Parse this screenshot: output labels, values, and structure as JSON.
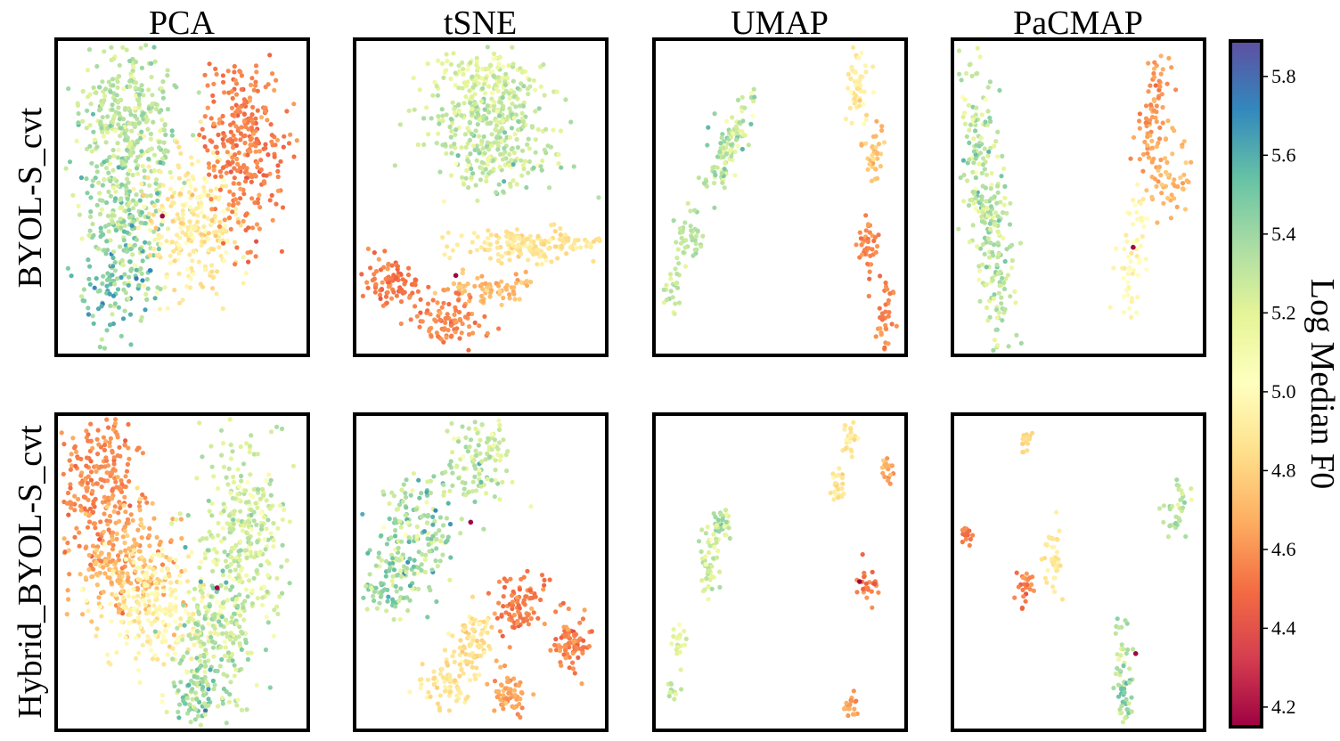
{
  "chart_data": {
    "type": "scatter",
    "grid": false,
    "columns": [
      "PCA",
      "tSNE",
      "UMAP",
      "PaCMAP"
    ],
    "rows": [
      "BYOL-S_cvt",
      "Hybrid_BYOL-S_cvt"
    ],
    "colorbar": {
      "label": "Log Median F0",
      "colormap": "Spectral",
      "range": [
        4.15,
        5.89
      ],
      "ticks": [
        "4.2",
        "4.4",
        "4.6",
        "4.8",
        "5.0",
        "5.2",
        "5.4",
        "5.6",
        "5.8"
      ],
      "tick_values": [
        4.2,
        4.4,
        4.6,
        4.8,
        5.0,
        5.2,
        5.4,
        5.6,
        5.8
      ]
    },
    "panels": [
      {
        "row": 0,
        "method": "PCA",
        "clusters": [
          {
            "x": 0.29,
            "y": 0.26,
            "sx": 0.1,
            "sy": 0.13,
            "v": 5.3,
            "vs": 0.08,
            "n": 320
          },
          {
            "x": 0.27,
            "y": 0.57,
            "sx": 0.09,
            "sy": 0.16,
            "v": 5.36,
            "vs": 0.12,
            "n": 260
          },
          {
            "x": 0.55,
            "y": 0.59,
            "sx": 0.1,
            "sy": 0.12,
            "v": 4.92,
            "vs": 0.07,
            "n": 260
          },
          {
            "x": 0.75,
            "y": 0.33,
            "sx": 0.08,
            "sy": 0.15,
            "v": 4.55,
            "vs": 0.05,
            "n": 300
          },
          {
            "x": 0.25,
            "y": 0.78,
            "sx": 0.07,
            "sy": 0.08,
            "v": 5.52,
            "vs": 0.14,
            "n": 70
          }
        ],
        "outliers": [
          {
            "x": 0.42,
            "y": 0.56,
            "v": 4.16
          }
        ]
      },
      {
        "row": 0,
        "method": "tSNE",
        "clusters": [
          {
            "x": 0.52,
            "y": 0.11,
            "sx": 0.1,
            "sy": 0.045,
            "v": 5.22,
            "vs": 0.07,
            "n": 130
          },
          {
            "x": 0.53,
            "y": 0.23,
            "sx": 0.12,
            "sy": 0.05,
            "v": 5.3,
            "vs": 0.08,
            "n": 160
          },
          {
            "x": 0.54,
            "y": 0.37,
            "sx": 0.12,
            "sy": 0.06,
            "v": 5.28,
            "vs": 0.1,
            "n": 190
          },
          {
            "x": 0.7,
            "y": 0.65,
            "sx": 0.16,
            "sy": 0.025,
            "v": 4.88,
            "vs": 0.05,
            "n": 170
          },
          {
            "x": 0.13,
            "y": 0.77,
            "sx": 0.07,
            "sy": 0.035,
            "v": 4.52,
            "vs": 0.05,
            "n": 100
          },
          {
            "x": 0.52,
            "y": 0.79,
            "sx": 0.09,
            "sy": 0.022,
            "v": 4.72,
            "vs": 0.05,
            "n": 70
          },
          {
            "x": 0.38,
            "y": 0.9,
            "sx": 0.08,
            "sy": 0.035,
            "v": 4.56,
            "vs": 0.05,
            "n": 90
          }
        ],
        "outliers": [
          {
            "x": 0.4,
            "y": 0.75,
            "v": 4.16
          }
        ]
      },
      {
        "row": 0,
        "method": "UMAP",
        "clusters": [
          {
            "x": 0.29,
            "y": 0.34,
            "sx": 0.028,
            "sy": 0.08,
            "v": 5.3,
            "vs": 0.1,
            "n": 110,
            "rot": 25
          },
          {
            "x": 0.14,
            "y": 0.63,
            "sx": 0.028,
            "sy": 0.035,
            "v": 5.3,
            "vs": 0.06,
            "n": 40
          },
          {
            "x": 0.07,
            "y": 0.77,
            "sx": 0.015,
            "sy": 0.05,
            "v": 5.3,
            "vs": 0.06,
            "n": 25
          },
          {
            "x": 0.81,
            "y": 0.15,
            "sx": 0.025,
            "sy": 0.06,
            "v": 4.92,
            "vs": 0.05,
            "n": 50
          },
          {
            "x": 0.88,
            "y": 0.37,
            "sx": 0.025,
            "sy": 0.05,
            "v": 4.75,
            "vs": 0.05,
            "n": 35
          },
          {
            "x": 0.86,
            "y": 0.64,
            "sx": 0.022,
            "sy": 0.05,
            "v": 4.55,
            "vs": 0.05,
            "n": 40
          },
          {
            "x": 0.93,
            "y": 0.89,
            "sx": 0.02,
            "sy": 0.05,
            "v": 4.55,
            "vs": 0.05,
            "n": 35
          }
        ],
        "outliers": []
      },
      {
        "row": 0,
        "method": "PaCMAP",
        "clusters": [
          {
            "x": 0.13,
            "y": 0.52,
            "sx": 0.04,
            "sy": 0.26,
            "v": 5.3,
            "vs": 0.1,
            "n": 280,
            "rot": -8
          },
          {
            "x": 0.86,
            "y": 0.42,
            "sx": 0.05,
            "sy": 0.08,
            "v": 4.7,
            "vs": 0.05,
            "n": 60
          },
          {
            "x": 0.8,
            "y": 0.23,
            "sx": 0.025,
            "sy": 0.1,
            "v": 4.62,
            "vs": 0.05,
            "n": 70,
            "rot": 10
          },
          {
            "x": 0.72,
            "y": 0.7,
            "sx": 0.025,
            "sy": 0.12,
            "v": 4.98,
            "vs": 0.05,
            "n": 60,
            "rot": 10
          }
        ],
        "outliers": [
          {
            "x": 0.72,
            "y": 0.66,
            "v": 4.16
          }
        ]
      },
      {
        "row": 1,
        "method": "PCA",
        "clusters": [
          {
            "x": 0.17,
            "y": 0.21,
            "sx": 0.09,
            "sy": 0.12,
            "v": 4.58,
            "vs": 0.05,
            "n": 260
          },
          {
            "x": 0.28,
            "y": 0.48,
            "sx": 0.1,
            "sy": 0.1,
            "v": 4.7,
            "vs": 0.07,
            "n": 220
          },
          {
            "x": 0.4,
            "y": 0.62,
            "sx": 0.1,
            "sy": 0.1,
            "v": 4.95,
            "vs": 0.06,
            "n": 220
          },
          {
            "x": 0.74,
            "y": 0.36,
            "sx": 0.09,
            "sy": 0.16,
            "v": 5.25,
            "vs": 0.1,
            "n": 300
          },
          {
            "x": 0.63,
            "y": 0.73,
            "sx": 0.08,
            "sy": 0.12,
            "v": 5.32,
            "vs": 0.12,
            "n": 220
          },
          {
            "x": 0.56,
            "y": 0.9,
            "sx": 0.05,
            "sy": 0.05,
            "v": 5.4,
            "vs": 0.12,
            "n": 60
          }
        ],
        "outliers": [
          {
            "x": 0.64,
            "y": 0.55,
            "v": 4.16
          }
        ]
      },
      {
        "row": 1,
        "method": "tSNE",
        "clusters": [
          {
            "x": 0.5,
            "y": 0.14,
            "sx": 0.07,
            "sy": 0.07,
            "v": 5.28,
            "vs": 0.1,
            "n": 120
          },
          {
            "x": 0.23,
            "y": 0.37,
            "sx": 0.09,
            "sy": 0.08,
            "v": 5.35,
            "vs": 0.12,
            "n": 160
          },
          {
            "x": 0.15,
            "y": 0.55,
            "sx": 0.07,
            "sy": 0.05,
            "v": 5.38,
            "vs": 0.12,
            "n": 80
          },
          {
            "x": 0.66,
            "y": 0.6,
            "sx": 0.05,
            "sy": 0.045,
            "v": 4.55,
            "vs": 0.05,
            "n": 90
          },
          {
            "x": 0.87,
            "y": 0.73,
            "sx": 0.04,
            "sy": 0.04,
            "v": 4.55,
            "vs": 0.05,
            "n": 80
          },
          {
            "x": 0.48,
            "y": 0.72,
            "sx": 0.05,
            "sy": 0.05,
            "v": 4.85,
            "vs": 0.05,
            "n": 80
          },
          {
            "x": 0.37,
            "y": 0.86,
            "sx": 0.05,
            "sy": 0.04,
            "v": 4.88,
            "vs": 0.05,
            "n": 70
          },
          {
            "x": 0.62,
            "y": 0.89,
            "sx": 0.04,
            "sy": 0.04,
            "v": 4.65,
            "vs": 0.05,
            "n": 60
          }
        ],
        "outliers": [
          {
            "x": 0.46,
            "y": 0.34,
            "v": 4.16
          }
        ]
      },
      {
        "row": 1,
        "method": "UMAP",
        "clusters": [
          {
            "x": 0.78,
            "y": 0.09,
            "sx": 0.015,
            "sy": 0.04,
            "v": 4.9,
            "vs": 0.05,
            "n": 25
          },
          {
            "x": 0.73,
            "y": 0.23,
            "sx": 0.015,
            "sy": 0.03,
            "v": 4.9,
            "vs": 0.05,
            "n": 25
          },
          {
            "x": 0.93,
            "y": 0.17,
            "sx": 0.015,
            "sy": 0.02,
            "v": 4.65,
            "vs": 0.05,
            "n": 20
          },
          {
            "x": 0.26,
            "y": 0.35,
            "sx": 0.02,
            "sy": 0.03,
            "v": 5.32,
            "vs": 0.1,
            "n": 35
          },
          {
            "x": 0.22,
            "y": 0.47,
            "sx": 0.02,
            "sy": 0.06,
            "v": 5.25,
            "vs": 0.08,
            "n": 45
          },
          {
            "x": 0.86,
            "y": 0.54,
            "sx": 0.02,
            "sy": 0.03,
            "v": 4.55,
            "vs": 0.05,
            "n": 25
          },
          {
            "x": 0.09,
            "y": 0.72,
            "sx": 0.015,
            "sy": 0.03,
            "v": 5.2,
            "vs": 0.06,
            "n": 20
          },
          {
            "x": 0.06,
            "y": 0.88,
            "sx": 0.015,
            "sy": 0.015,
            "v": 5.3,
            "vs": 0.05,
            "n": 12
          },
          {
            "x": 0.78,
            "y": 0.92,
            "sx": 0.015,
            "sy": 0.025,
            "v": 4.62,
            "vs": 0.05,
            "n": 20
          }
        ],
        "outliers": [
          {
            "x": 0.82,
            "y": 0.53,
            "v": 4.16
          }
        ]
      },
      {
        "row": 1,
        "method": "PaCMAP",
        "clusters": [
          {
            "x": 0.29,
            "y": 0.08,
            "sx": 0.015,
            "sy": 0.02,
            "v": 4.85,
            "vs": 0.05,
            "n": 15
          },
          {
            "x": 0.9,
            "y": 0.31,
            "sx": 0.03,
            "sy": 0.04,
            "v": 5.3,
            "vs": 0.08,
            "n": 35
          },
          {
            "x": 0.05,
            "y": 0.37,
            "sx": 0.012,
            "sy": 0.02,
            "v": 4.55,
            "vs": 0.05,
            "n": 15
          },
          {
            "x": 0.4,
            "y": 0.45,
            "sx": 0.02,
            "sy": 0.06,
            "v": 4.9,
            "vs": 0.05,
            "n": 40
          },
          {
            "x": 0.29,
            "y": 0.55,
            "sx": 0.02,
            "sy": 0.025,
            "v": 4.55,
            "vs": 0.05,
            "n": 25
          },
          {
            "x": 0.68,
            "y": 0.82,
            "sx": 0.02,
            "sy": 0.09,
            "v": 5.35,
            "vs": 0.12,
            "n": 60
          }
        ],
        "outliers": [
          {
            "x": 0.73,
            "y": 0.76,
            "v": 4.16
          }
        ]
      }
    ]
  }
}
